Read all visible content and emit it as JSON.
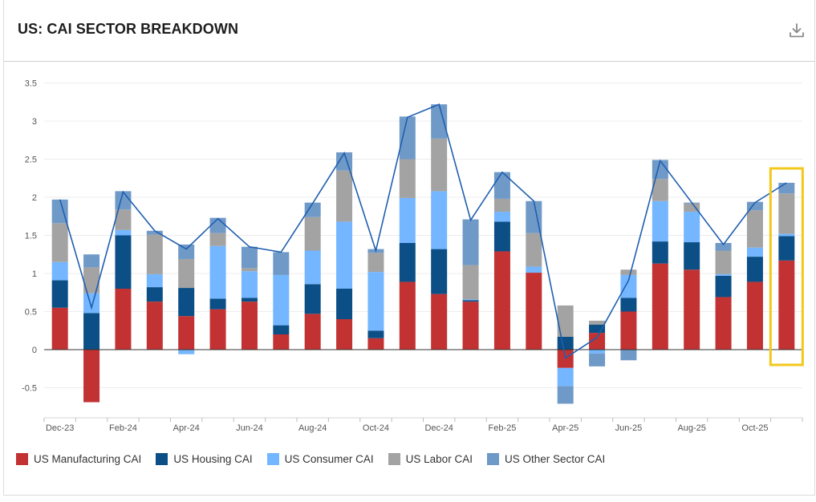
{
  "header": {
    "title": "US: CAI SECTOR BREAKDOWN",
    "download_icon": "download-icon"
  },
  "colors": {
    "manufacturing": "#c23232",
    "housing": "#0b4f86",
    "consumer": "#74b6ff",
    "labor": "#a3a3a3",
    "other": "#6f9ac8",
    "line": "#1f5fb0",
    "highlight": "#f2c81c"
  },
  "chart_data": {
    "type": "bar",
    "stacked": true,
    "title": "US: CAI SECTOR BREAKDOWN",
    "xlabel": "",
    "ylabel": "",
    "ylim": [
      -0.8,
      3.5
    ],
    "yticks": [
      3.5,
      3,
      2.5,
      2,
      1.5,
      1,
      0.5,
      0,
      -0.5
    ],
    "ytick_labels": [
      "3.5",
      "3",
      "2.5",
      "2",
      "1.5",
      "1",
      "0.5",
      "0",
      "-0.5"
    ],
    "categories": [
      "Dec-23",
      "Jan-24",
      "Feb-24",
      "Mar-24",
      "Apr-24",
      "May-24",
      "Jun-24",
      "Jul-24",
      "Aug-24",
      "Sep-24",
      "Oct-24",
      "Nov-24",
      "Dec-24",
      "Jan-25",
      "Feb-25",
      "Mar-25",
      "Apr-25",
      "May-25",
      "Jun-25",
      "Jul-25",
      "Aug-25",
      "Sep-25",
      "Oct-25",
      "Nov-25"
    ],
    "xtick_labels": [
      "Dec-23",
      "Feb-24",
      "Apr-24",
      "Jun-24",
      "Aug-24",
      "Oct-24",
      "Dec-24",
      "Feb-25",
      "Apr-25",
      "Jun-25",
      "Aug-25",
      "Oct-25"
    ],
    "xtick_indices": [
      0,
      2,
      4,
      6,
      8,
      10,
      12,
      14,
      16,
      18,
      20,
      22
    ],
    "series": [
      {
        "name": "US Manufacturing CAI",
        "key": "manufacturing",
        "values": [
          0.55,
          -0.69,
          0.8,
          0.63,
          0.44,
          0.53,
          0.63,
          0.2,
          0.47,
          0.4,
          0.15,
          0.89,
          0.73,
          0.63,
          1.29,
          1.01,
          -0.24,
          0.22,
          0.5,
          1.13,
          1.05,
          0.69,
          0.89,
          1.17
        ]
      },
      {
        "name": "US Housing CAI",
        "key": "housing",
        "values": [
          0.36,
          0.48,
          0.7,
          0.19,
          0.37,
          0.14,
          0.05,
          0.12,
          0.39,
          0.4,
          0.1,
          0.51,
          0.59,
          0.02,
          0.39,
          0.0,
          0.17,
          0.11,
          0.18,
          0.29,
          0.36,
          0.28,
          0.33,
          0.32
        ]
      },
      {
        "name": "US Consumer CAI",
        "key": "consumer",
        "values": [
          0.24,
          0.26,
          0.07,
          0.17,
          -0.06,
          0.69,
          0.35,
          0.66,
          0.44,
          0.88,
          0.77,
          0.59,
          0.76,
          0.01,
          0.13,
          0.08,
          -0.24,
          -0.05,
          0.3,
          0.53,
          0.4,
          0.02,
          0.12,
          0.03
        ]
      },
      {
        "name": "US Labor CAI",
        "key": "labor",
        "values": [
          0.51,
          0.34,
          0.27,
          0.52,
          0.38,
          0.17,
          0.04,
          0.0,
          0.44,
          0.67,
          0.25,
          0.51,
          0.69,
          0.45,
          0.17,
          0.44,
          0.41,
          0.05,
          0.07,
          0.29,
          0.11,
          0.31,
          0.49,
          0.53
        ]
      },
      {
        "name": "US Other Sector CAI",
        "key": "other",
        "values": [
          0.31,
          0.17,
          0.24,
          0.05,
          0.19,
          0.2,
          0.28,
          0.3,
          0.19,
          0.24,
          0.05,
          0.56,
          0.45,
          0.6,
          0.35,
          0.42,
          -0.23,
          -0.17,
          -0.14,
          0.25,
          0.01,
          0.1,
          0.11,
          0.14
        ]
      }
    ],
    "total_line": {
      "name": "Total",
      "values": [
        1.97,
        0.55,
        2.07,
        1.56,
        1.32,
        1.72,
        1.35,
        1.28,
        1.92,
        2.58,
        1.3,
        3.05,
        3.22,
        1.7,
        2.33,
        1.95,
        -0.11,
        0.16,
        0.91,
        2.48,
        1.93,
        1.38,
        1.93,
        2.19
      ]
    },
    "highlight_index": 23,
    "legend_position": "bottom-left"
  }
}
